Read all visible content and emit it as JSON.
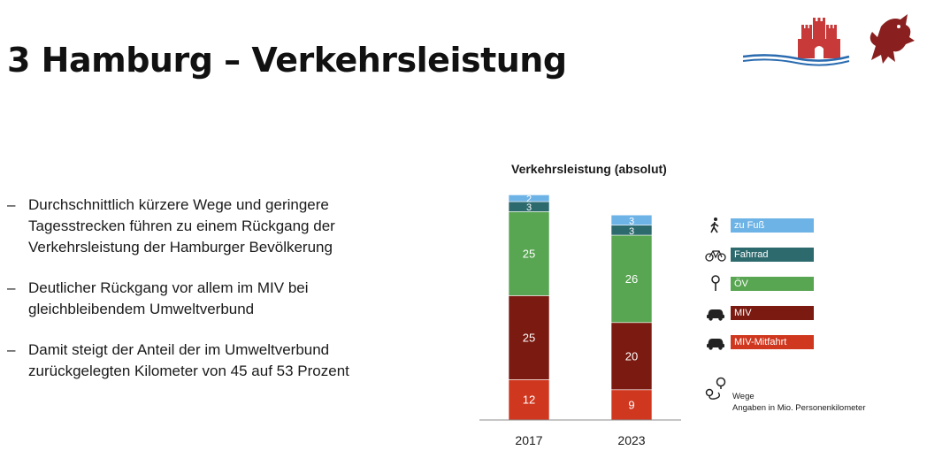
{
  "slide": {
    "title": "3 Hamburg – Verkehrsleistung",
    "bullets": [
      "Durchschnittlich kürzere Wege und geringere Tagesstrecken führen zu einem Rückgang der Verkehrsleistung der Hamburger Bevölkerung",
      "Deutlicher Rückgang vor allem im MIV bei gleichbleibendem Umweltverbund",
      "Damit steigt der Anteil der im Umweltverbund zurückgelegten Kilometer von 45 auf 53 Prozent"
    ],
    "note": {
      "line1": "Wege",
      "line2": "Angaben in Mio. Personenkilometer"
    }
  },
  "chart_data": {
    "type": "bar",
    "stacked": true,
    "title": "Verkehrsleistung (absolut)",
    "categories": [
      "2017",
      "2023"
    ],
    "series": [
      {
        "name": "MIV-Mitfahrt",
        "values": [
          12,
          9
        ],
        "color": "#d0371f",
        "icon": "car-icon"
      },
      {
        "name": "MIV",
        "values": [
          25,
          20
        ],
        "color": "#7b1a10",
        "icon": "car-icon"
      },
      {
        "name": "ÖV",
        "values": [
          25,
          26
        ],
        "color": "#58a552",
        "icon": "bus-stop-icon"
      },
      {
        "name": "Fahrrad",
        "values": [
          3,
          3
        ],
        "color": "#2d6a6e",
        "icon": "bicycle-icon"
      },
      {
        "name": "zu Fuß",
        "values": [
          2,
          3
        ],
        "color": "#6db3e6",
        "icon": "pedestrian-icon"
      }
    ],
    "legend_order": [
      "zu Fuß",
      "Fahrrad",
      "ÖV",
      "MIV",
      "MIV-Mitfahrt"
    ],
    "legend_position": "right",
    "grid": false
  }
}
